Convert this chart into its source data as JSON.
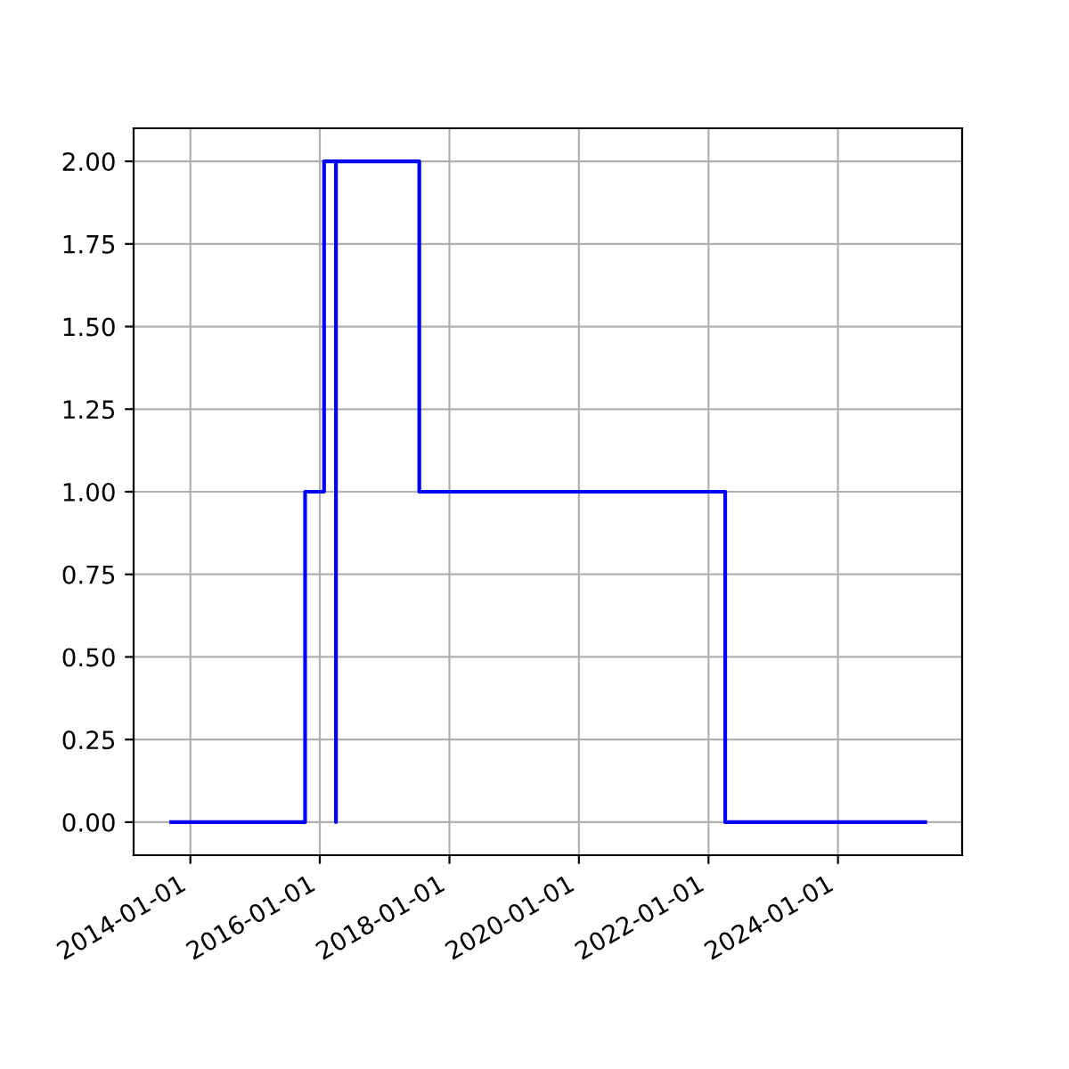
{
  "chart_data": {
    "type": "step",
    "x": [
      "2013-09-15",
      "2015-10-10",
      "2016-01-25",
      "2016-04-01",
      "2016-04-01",
      "2017-07-15",
      "2022-04-05",
      "2025-05-07"
    ],
    "series": [
      {
        "color": "#0000ff",
        "values": [
          0,
          1,
          2,
          0,
          2,
          1,
          0,
          0
        ]
      }
    ],
    "xlim": [
      "2013-02-15",
      "2025-12-01"
    ],
    "xticks": [
      {
        "value": "2014-01-01",
        "label": "2014-01-01"
      },
      {
        "value": "2016-01-01",
        "label": "2016-01-01"
      },
      {
        "value": "2018-01-01",
        "label": "2018-01-01"
      },
      {
        "value": "2020-01-01",
        "label": "2020-01-01"
      },
      {
        "value": "2022-01-01",
        "label": "2022-01-01"
      },
      {
        "value": "2024-01-01",
        "label": "2024-01-01"
      }
    ],
    "ylim": [
      -0.1,
      2.1
    ],
    "yticks": [
      {
        "value": 0,
        "label": "0.00"
      },
      {
        "value": 0.25,
        "label": "0.25"
      },
      {
        "value": 0.5,
        "label": "0.50"
      },
      {
        "value": 0.75,
        "label": "0.75"
      },
      {
        "value": 1,
        "label": "1.00"
      },
      {
        "value": 1.25,
        "label": "1.25"
      },
      {
        "value": 1.5,
        "label": "1.50"
      },
      {
        "value": 1.75,
        "label": "1.75"
      },
      {
        "value": 2,
        "label": "2.00"
      }
    ],
    "grid": true,
    "legend": false
  }
}
